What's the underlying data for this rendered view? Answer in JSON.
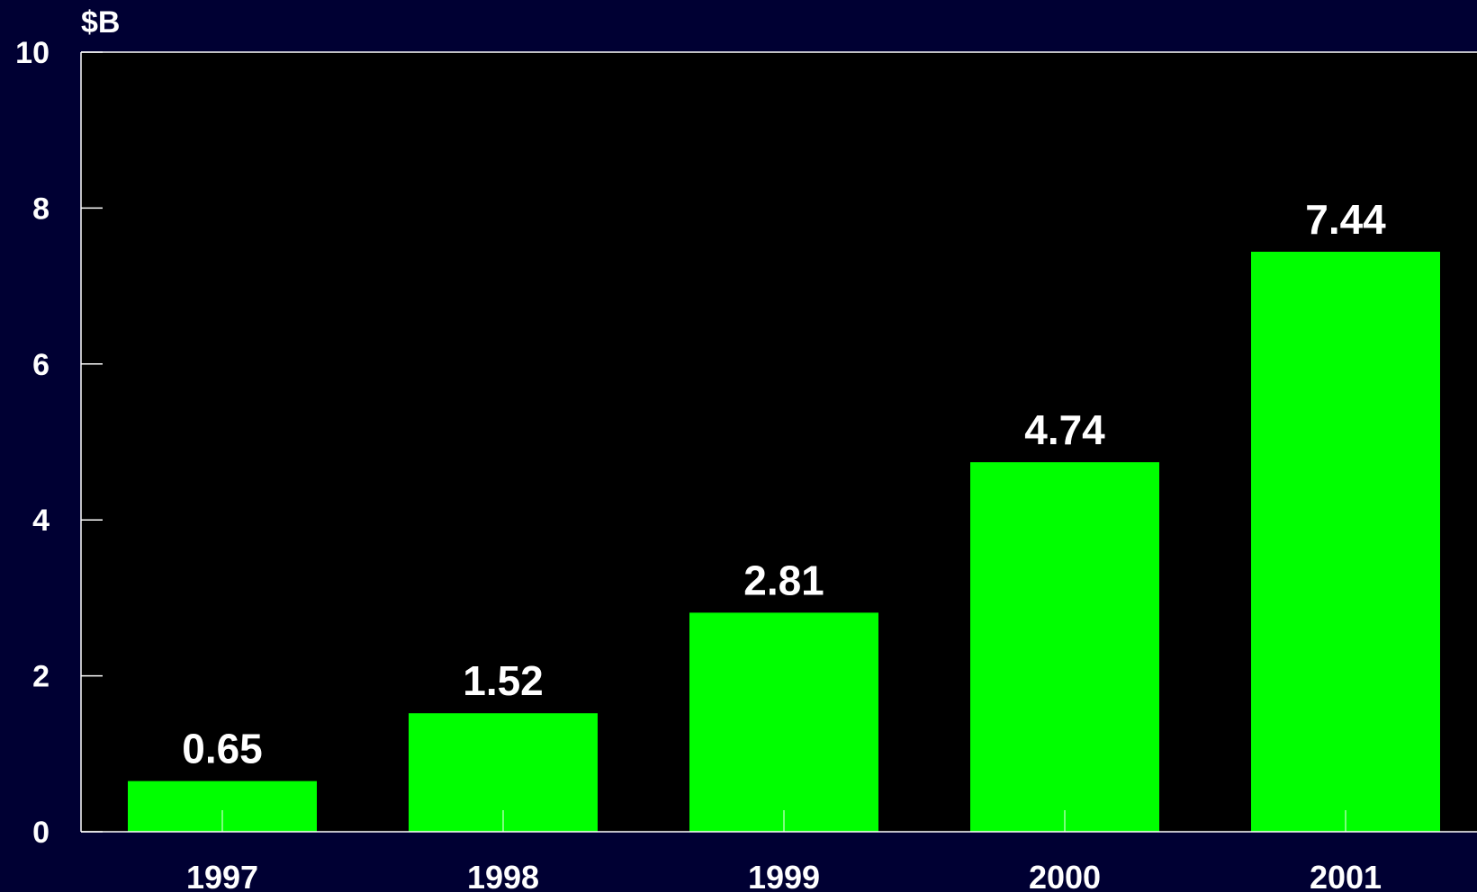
{
  "chart_data": {
    "type": "bar",
    "categories": [
      "1997",
      "1998",
      "1999",
      "2000",
      "2001"
    ],
    "values": [
      0.65,
      1.52,
      2.81,
      4.74,
      7.44
    ],
    "data_labels": [
      "0.65",
      "1.52",
      "2.81",
      "4.74",
      "7.44"
    ],
    "ylabel": "$B",
    "xlabel": "",
    "title": "",
    "ylim": [
      0,
      10
    ],
    "yticks": [
      0,
      2,
      4,
      6,
      8,
      10
    ],
    "ytick_labels": [
      "0",
      "2",
      "4",
      "6",
      "8",
      "10"
    ],
    "grid": false,
    "legend": "none",
    "colors": {
      "background": "#000033",
      "plot_area": "#000000",
      "bar": "#00ff00",
      "axis": "#ffffff",
      "text": "#ffffff"
    }
  }
}
